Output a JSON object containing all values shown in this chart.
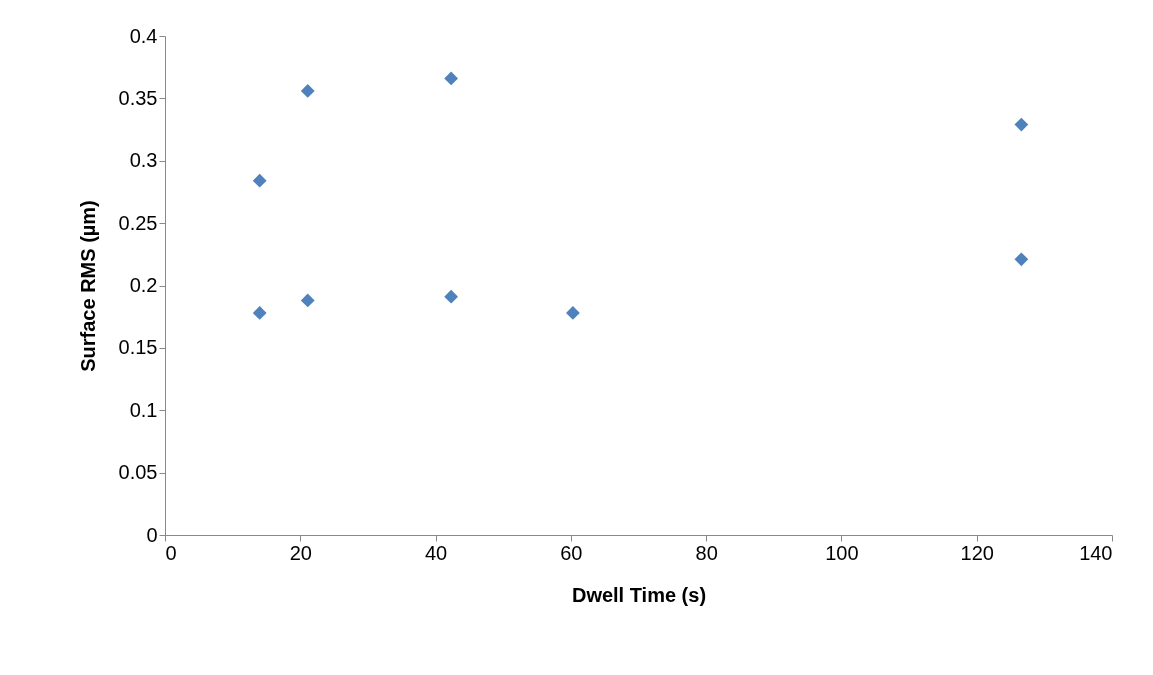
{
  "chart_data": {
    "type": "scatter",
    "xlabel": "Dwell Time (s)",
    "ylabel": "Surface RMS (µm)",
    "x": [
      14.0,
      14.0,
      21.1,
      21.1,
      42.3,
      42.3,
      60.3,
      126.6,
      126.6
    ],
    "values": [
      0.178,
      0.284,
      0.356,
      0.188,
      0.366,
      0.191,
      0.178,
      0.329,
      0.221
    ],
    "color": "#4f81bd",
    "marker": "diamond",
    "xlim": [
      0,
      140
    ],
    "xticks": [
      0,
      20,
      40,
      60,
      80,
      100,
      120,
      140
    ],
    "ylim": [
      0,
      0.4
    ],
    "yticks": [
      0,
      0.05,
      0.1,
      0.15,
      0.2,
      0.25,
      0.3,
      0.35,
      0.4
    ],
    "grid": false
  }
}
